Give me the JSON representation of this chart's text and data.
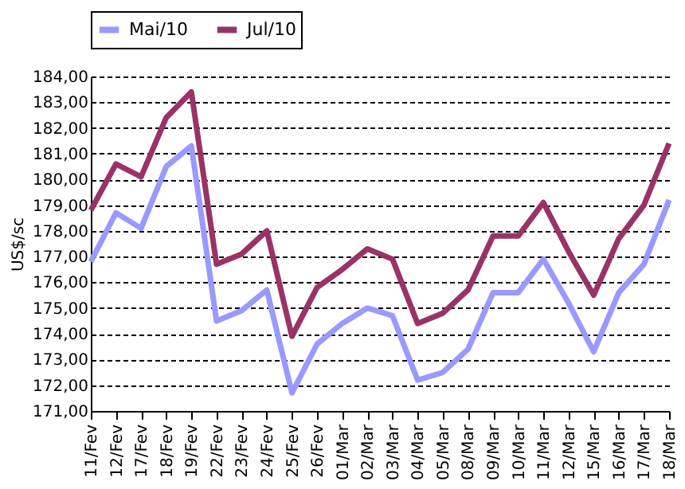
{
  "chart_data": {
    "type": "line",
    "ylabel": "US$/sc",
    "categories": [
      "11/Fev",
      "12/Fev",
      "17/Fev",
      "18/Fev",
      "19/Fev",
      "22/Fev",
      "23/Fev",
      "24/Fev",
      "25/Fev",
      "26/Fev",
      "01/Mar",
      "02/Mar",
      "03/Mar",
      "04/Mar",
      "05/Mar",
      "08/Mar",
      "09/Mar",
      "10/Mar",
      "11/Mar",
      "12/Mar",
      "15/Mar",
      "16/Mar",
      "17/Mar",
      "18/Mar"
    ],
    "series": [
      {
        "name": "Mai/10",
        "color": "#9999ff",
        "values": [
          176.8,
          178.7,
          178.1,
          180.5,
          181.3,
          174.5,
          174.9,
          175.7,
          171.7,
          173.6,
          174.4,
          175.0,
          174.7,
          172.2,
          172.5,
          173.4,
          175.6,
          175.6,
          176.9,
          175.2,
          173.3,
          175.6,
          176.7,
          179.2
        ]
      },
      {
        "name": "Jul/10",
        "color": "#993366",
        "values": [
          178.8,
          180.6,
          180.1,
          182.4,
          183.4,
          176.7,
          177.1,
          178.0,
          173.9,
          175.8,
          176.5,
          177.3,
          176.9,
          174.4,
          174.8,
          175.7,
          177.8,
          177.8,
          179.1,
          177.2,
          175.5,
          177.7,
          179.0,
          181.4
        ]
      }
    ],
    "ylim": [
      171,
      184
    ],
    "yticks": [
      {
        "value": 171,
        "label": "171,00"
      },
      {
        "value": 172,
        "label": "172,00"
      },
      {
        "value": 173,
        "label": "173,00"
      },
      {
        "value": 174,
        "label": "174,00"
      },
      {
        "value": 175,
        "label": "175,00"
      },
      {
        "value": 176,
        "label": "176,00"
      },
      {
        "value": 177,
        "label": "177,00"
      },
      {
        "value": 178,
        "label": "178,00"
      },
      {
        "value": 179,
        "label": "179,00"
      },
      {
        "value": 180,
        "label": "180,00"
      },
      {
        "value": 181,
        "label": "181,00"
      },
      {
        "value": 182,
        "label": "182,00"
      },
      {
        "value": 183,
        "label": "183,00"
      },
      {
        "value": 184,
        "label": "184,00"
      }
    ],
    "grid": "y",
    "legend": "top",
    "marker": "none",
    "line_style": "solid"
  }
}
